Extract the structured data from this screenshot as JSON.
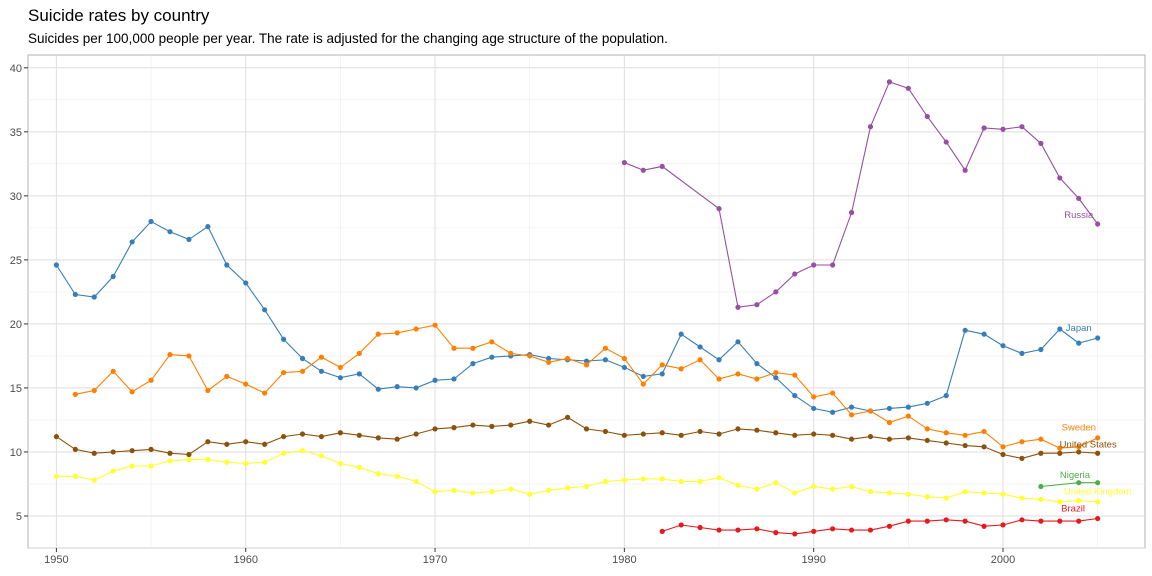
{
  "header": {
    "title": "Suicide rates by country",
    "subtitle": "Suicides per 100,000 people per year. The rate is adjusted for the changing age structure of the population."
  },
  "chart_data": {
    "type": "line",
    "title": "Suicide rates by country",
    "subtitle": "Suicides per 100,000 people per year. The rate is adjusted for the changing age structure of the population.",
    "xlabel": "",
    "ylabel": "",
    "xlim": [
      1948.5,
      2007.5
    ],
    "ylim": [
      2.5,
      41.0
    ],
    "x_ticks": [
      1950,
      1960,
      1970,
      1980,
      1990,
      2000
    ],
    "y_ticks": [
      5,
      10,
      15,
      20,
      25,
      30,
      35,
      40
    ],
    "grid": true,
    "legend": "direct-labels-at-line-end",
    "series": [
      {
        "name": "Russia",
        "color": "#984ea3",
        "x": [
          1980,
          1981,
          1982,
          1985,
          1986,
          1987,
          1988,
          1989,
          1990,
          1991,
          1992,
          1993,
          1994,
          1995,
          1996,
          1997,
          1998,
          1999,
          2000,
          2001,
          2002,
          2003,
          2004,
          2005
        ],
        "y": [
          32.6,
          32.0,
          32.3,
          29.0,
          21.3,
          21.5,
          22.5,
          23.9,
          24.6,
          24.6,
          28.7,
          35.4,
          38.9,
          38.4,
          36.2,
          34.2,
          32.0,
          35.3,
          35.2,
          35.4,
          34.1,
          31.4,
          29.8,
          27.8
        ]
      },
      {
        "name": "Japan",
        "color": "#377eb8",
        "x": [
          1950,
          1951,
          1952,
          1953,
          1954,
          1955,
          1956,
          1957,
          1958,
          1959,
          1960,
          1961,
          1962,
          1963,
          1964,
          1965,
          1966,
          1967,
          1968,
          1969,
          1970,
          1971,
          1972,
          1973,
          1974,
          1975,
          1976,
          1977,
          1978,
          1979,
          1980,
          1981,
          1982,
          1983,
          1984,
          1985,
          1986,
          1987,
          1988,
          1989,
          1990,
          1991,
          1992,
          1993,
          1994,
          1995,
          1996,
          1997,
          1998,
          1999,
          2000,
          2001,
          2002,
          2003,
          2004,
          2005
        ],
        "y": [
          24.6,
          22.3,
          22.1,
          23.7,
          26.4,
          28.0,
          27.2,
          26.6,
          27.6,
          24.6,
          23.2,
          21.1,
          18.8,
          17.3,
          16.3,
          15.8,
          16.1,
          14.9,
          15.1,
          15.0,
          15.6,
          15.7,
          16.9,
          17.4,
          17.5,
          17.6,
          17.3,
          17.2,
          17.1,
          17.2,
          16.6,
          15.9,
          16.1,
          19.2,
          18.2,
          17.2,
          18.6,
          16.9,
          15.8,
          14.4,
          13.4,
          13.1,
          13.5,
          13.2,
          13.4,
          13.5,
          13.8,
          14.4,
          19.5,
          19.2,
          18.3,
          17.7,
          18.0,
          19.6,
          18.5,
          18.9
        ]
      },
      {
        "name": "Sweden",
        "color": "#ff7f00",
        "x": [
          1951,
          1952,
          1953,
          1954,
          1955,
          1956,
          1957,
          1958,
          1959,
          1960,
          1961,
          1962,
          1963,
          1964,
          1965,
          1966,
          1967,
          1968,
          1969,
          1970,
          1971,
          1972,
          1973,
          1974,
          1975,
          1976,
          1977,
          1978,
          1979,
          1980,
          1981,
          1982,
          1983,
          1984,
          1985,
          1986,
          1987,
          1988,
          1989,
          1990,
          1991,
          1992,
          1993,
          1994,
          1995,
          1996,
          1997,
          1998,
          1999,
          2000,
          2001,
          2002,
          2003,
          2004,
          2005
        ],
        "y": [
          14.5,
          14.8,
          16.3,
          14.7,
          15.6,
          17.6,
          17.5,
          14.8,
          15.9,
          15.3,
          14.6,
          16.2,
          16.3,
          17.4,
          16.6,
          17.7,
          19.2,
          19.3,
          19.6,
          19.9,
          18.1,
          18.1,
          18.6,
          17.7,
          17.5,
          17.0,
          17.3,
          16.8,
          18.1,
          17.3,
          15.3,
          16.8,
          16.5,
          17.2,
          15.7,
          16.1,
          15.7,
          16.2,
          16.0,
          14.3,
          14.6,
          12.9,
          13.2,
          12.3,
          12.8,
          11.8,
          11.5,
          11.3,
          11.6,
          10.4,
          10.8,
          11.0,
          10.3,
          10.4,
          11.1
        ]
      },
      {
        "name": "United States",
        "color": "#8c510a",
        "x": [
          1950,
          1951,
          1952,
          1953,
          1954,
          1955,
          1956,
          1957,
          1958,
          1959,
          1960,
          1961,
          1962,
          1963,
          1964,
          1965,
          1966,
          1967,
          1968,
          1969,
          1970,
          1971,
          1972,
          1973,
          1974,
          1975,
          1976,
          1977,
          1978,
          1979,
          1980,
          1981,
          1982,
          1983,
          1984,
          1985,
          1986,
          1987,
          1988,
          1989,
          1990,
          1991,
          1992,
          1993,
          1994,
          1995,
          1996,
          1997,
          1998,
          1999,
          2000,
          2001,
          2002,
          2003,
          2004,
          2005
        ],
        "y": [
          11.2,
          10.2,
          9.9,
          10.0,
          10.1,
          10.2,
          9.9,
          9.8,
          10.8,
          10.6,
          10.8,
          10.6,
          11.2,
          11.4,
          11.2,
          11.5,
          11.3,
          11.1,
          11.0,
          11.4,
          11.8,
          11.9,
          12.1,
          12.0,
          12.1,
          12.4,
          12.1,
          12.7,
          11.8,
          11.6,
          11.3,
          11.4,
          11.5,
          11.3,
          11.6,
          11.4,
          11.8,
          11.7,
          11.5,
          11.3,
          11.4,
          11.3,
          11.0,
          11.2,
          11.0,
          11.1,
          10.9,
          10.7,
          10.5,
          10.4,
          9.8,
          9.5,
          9.9,
          9.9,
          10.0,
          9.9
        ]
      },
      {
        "name": "Nigeria",
        "color": "#4daf4a",
        "x": [
          2002,
          2004,
          2005
        ],
        "y": [
          7.3,
          7.6,
          7.6
        ]
      },
      {
        "name": "United Kingdom",
        "color": "#ffff33",
        "x": [
          1950,
          1951,
          1952,
          1953,
          1954,
          1955,
          1956,
          1957,
          1958,
          1959,
          1960,
          1961,
          1962,
          1963,
          1964,
          1965,
          1966,
          1967,
          1968,
          1969,
          1970,
          1971,
          1972,
          1973,
          1974,
          1975,
          1976,
          1977,
          1978,
          1979,
          1980,
          1981,
          1982,
          1983,
          1984,
          1985,
          1986,
          1987,
          1988,
          1989,
          1990,
          1991,
          1992,
          1993,
          1994,
          1995,
          1996,
          1997,
          1998,
          1999,
          2000,
          2001,
          2002,
          2003,
          2004,
          2005
        ],
        "y": [
          8.1,
          8.1,
          7.8,
          8.5,
          8.9,
          8.9,
          9.3,
          9.4,
          9.4,
          9.2,
          9.1,
          9.2,
          9.9,
          10.1,
          9.7,
          9.1,
          8.8,
          8.3,
          8.1,
          7.7,
          6.9,
          7.0,
          6.8,
          6.9,
          7.1,
          6.7,
          7.0,
          7.2,
          7.3,
          7.7,
          7.8,
          7.9,
          7.9,
          7.7,
          7.7,
          8.0,
          7.4,
          7.1,
          7.6,
          6.8,
          7.3,
          7.1,
          7.3,
          6.9,
          6.8,
          6.7,
          6.5,
          6.4,
          6.9,
          6.8,
          6.7,
          6.4,
          6.3,
          6.1,
          6.2,
          6.1
        ]
      },
      {
        "name": "Brazil",
        "color": "#e41a1c",
        "x": [
          1982,
          1983,
          1984,
          1985,
          1986,
          1987,
          1988,
          1989,
          1990,
          1991,
          1992,
          1993,
          1994,
          1995,
          1996,
          1997,
          1998,
          1999,
          2000,
          2001,
          2002,
          2003,
          2004,
          2005
        ],
        "y": [
          3.8,
          4.3,
          4.1,
          3.9,
          3.9,
          4.0,
          3.7,
          3.6,
          3.8,
          4.0,
          3.9,
          3.9,
          4.2,
          4.6,
          4.6,
          4.7,
          4.6,
          4.2,
          4.3,
          4.7,
          4.6,
          4.6,
          4.6,
          4.8
        ]
      }
    ],
    "annotations": [
      {
        "text": "Russia",
        "series": "Russia",
        "color": "#984ea3",
        "x": 2004.0,
        "y": 28.5
      },
      {
        "text": "Japan",
        "series": "Japan",
        "color": "#377eb8",
        "x": 2004.0,
        "y": 19.7
      },
      {
        "text": "Sweden",
        "series": "Sweden",
        "color": "#ff7f00",
        "x": 2004.0,
        "y": 11.9
      },
      {
        "text": "United States",
        "series": "United States",
        "color": "#8c510a",
        "x": 2004.5,
        "y": 10.6
      },
      {
        "text": "Nigeria",
        "series": "Nigeria",
        "color": "#4daf4a",
        "x": 2003.8,
        "y": 8.2
      },
      {
        "text": "United Kingdom",
        "series": "United Kingdom",
        "color": "#ffff33",
        "x": 2005.0,
        "y": 6.9
      },
      {
        "text": "Brazil",
        "series": "Brazil",
        "color": "#e41a1c",
        "x": 2003.7,
        "y": 5.6
      }
    ]
  }
}
